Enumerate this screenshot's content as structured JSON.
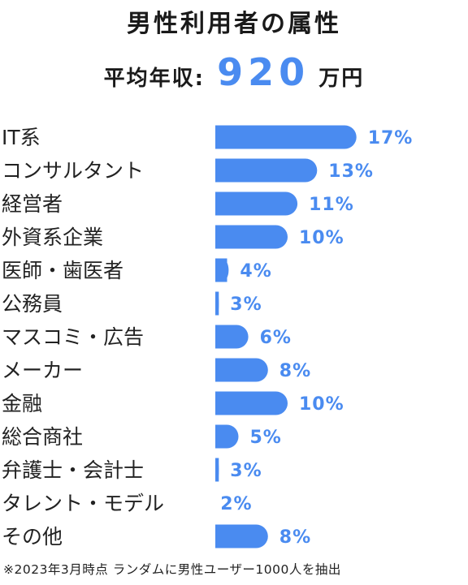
{
  "title": "男性利用者の属性",
  "income": {
    "label": "平均年収:",
    "value": "920",
    "unit": "万円"
  },
  "chart_data": {
    "type": "bar",
    "orientation": "horizontal",
    "categories": [
      "IT系",
      "コンサルタント",
      "経営者",
      "外資系企業",
      "医師・歯医者",
      "公務員",
      "マスコミ・広告",
      "メーカー",
      "金融",
      "総合商社",
      "弁護士・会計士",
      "タレント・モデル",
      "その他"
    ],
    "values": [
      17,
      13,
      11,
      10,
      4,
      3,
      6,
      8,
      10,
      5,
      3,
      2,
      8
    ],
    "value_labels": [
      "17%",
      "13%",
      "11%",
      "10%",
      "4%",
      "3%",
      "6%",
      "8%",
      "10%",
      "5%",
      "3%",
      "2%",
      "8%"
    ],
    "unit": "%",
    "bar_color": "#4a8bf0",
    "grid": false
  },
  "note": "※2023年3月時点 ランダムに男性ユーザー1000人を抽出"
}
